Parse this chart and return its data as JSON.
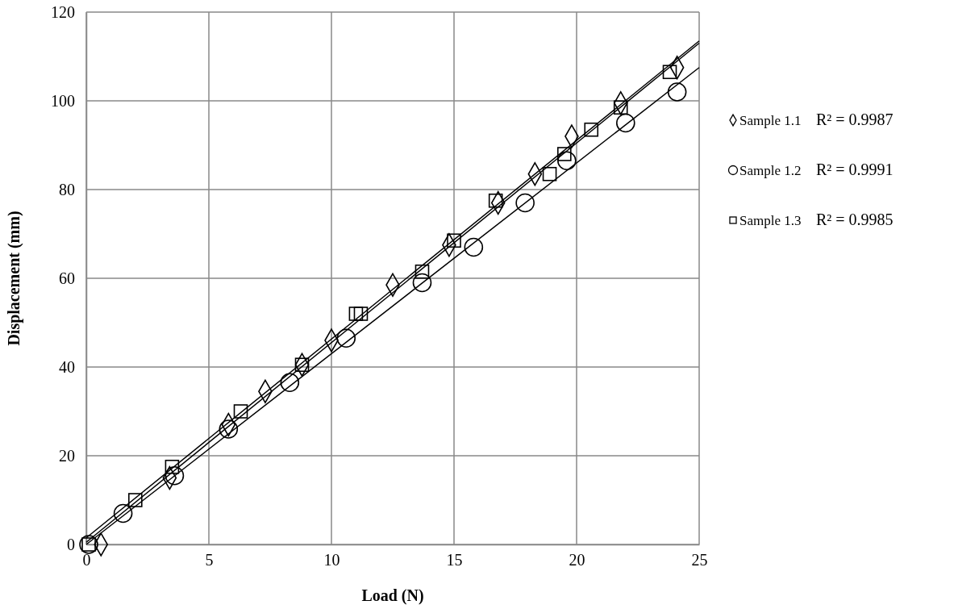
{
  "chart_data": {
    "type": "scatter",
    "xlabel": "Load (N)",
    "ylabel": "Displacement (mm)",
    "xlim": [
      0,
      25
    ],
    "ylim": [
      0,
      120
    ],
    "xticks": [
      0,
      5,
      10,
      15,
      20,
      25
    ],
    "yticks": [
      0,
      20,
      40,
      60,
      80,
      100,
      120
    ],
    "grid": true,
    "legend": "right",
    "series": [
      {
        "name": "Sample 1.1",
        "marker": "diamond",
        "color": "#000000",
        "x": [
          0.6,
          3.4,
          5.8,
          7.3,
          8.8,
          10,
          12.5,
          14.8,
          16.8,
          18.3,
          19.8,
          21.8,
          24.1
        ],
        "values": [
          0,
          15,
          27,
          34.5,
          40.5,
          46,
          58.5,
          67.5,
          77,
          83.5,
          92,
          99.5,
          107.5
        ]
      },
      {
        "name": "Sample 1.2",
        "marker": "circle",
        "color": "#000000",
        "x": [
          0.1,
          1.5,
          3.6,
          5.8,
          8.3,
          10.6,
          13.7,
          15.8,
          17.9,
          19.6,
          22,
          24.1
        ],
        "values": [
          0,
          7,
          15.5,
          26,
          36.5,
          46.5,
          59,
          67,
          77,
          86.5,
          95,
          102
        ]
      },
      {
        "name": "Sample 1.3",
        "marker": "square",
        "color": "#000000",
        "x": [
          0.1,
          2,
          3.5,
          6.3,
          8.8,
          11,
          11.2,
          13.7,
          15,
          16.7,
          18.9,
          19.5,
          20.6,
          21.8,
          23.8
        ],
        "values": [
          0,
          10,
          17.5,
          30,
          40.5,
          52,
          52,
          61.5,
          68.5,
          77.5,
          83.5,
          88,
          93.5,
          98.5,
          106.5
        ]
      },
      {
        "type": "line",
        "marker": "none",
        "color": "#000000",
        "x": [
          0,
          25
        ],
        "values": [
          1.5,
          113.5
        ]
      },
      {
        "type": "line",
        "marker": "none",
        "color": "#000000",
        "x": [
          0,
          25
        ],
        "values": [
          0,
          107.5
        ]
      },
      {
        "type": "line",
        "marker": "none",
        "color": "#000000",
        "x": [
          0,
          25
        ],
        "values": [
          0.5,
          113
        ]
      }
    ],
    "annotations": [
      "R² = 0.9987",
      "R² = 0.9991",
      "R² = 0.9985"
    ]
  }
}
